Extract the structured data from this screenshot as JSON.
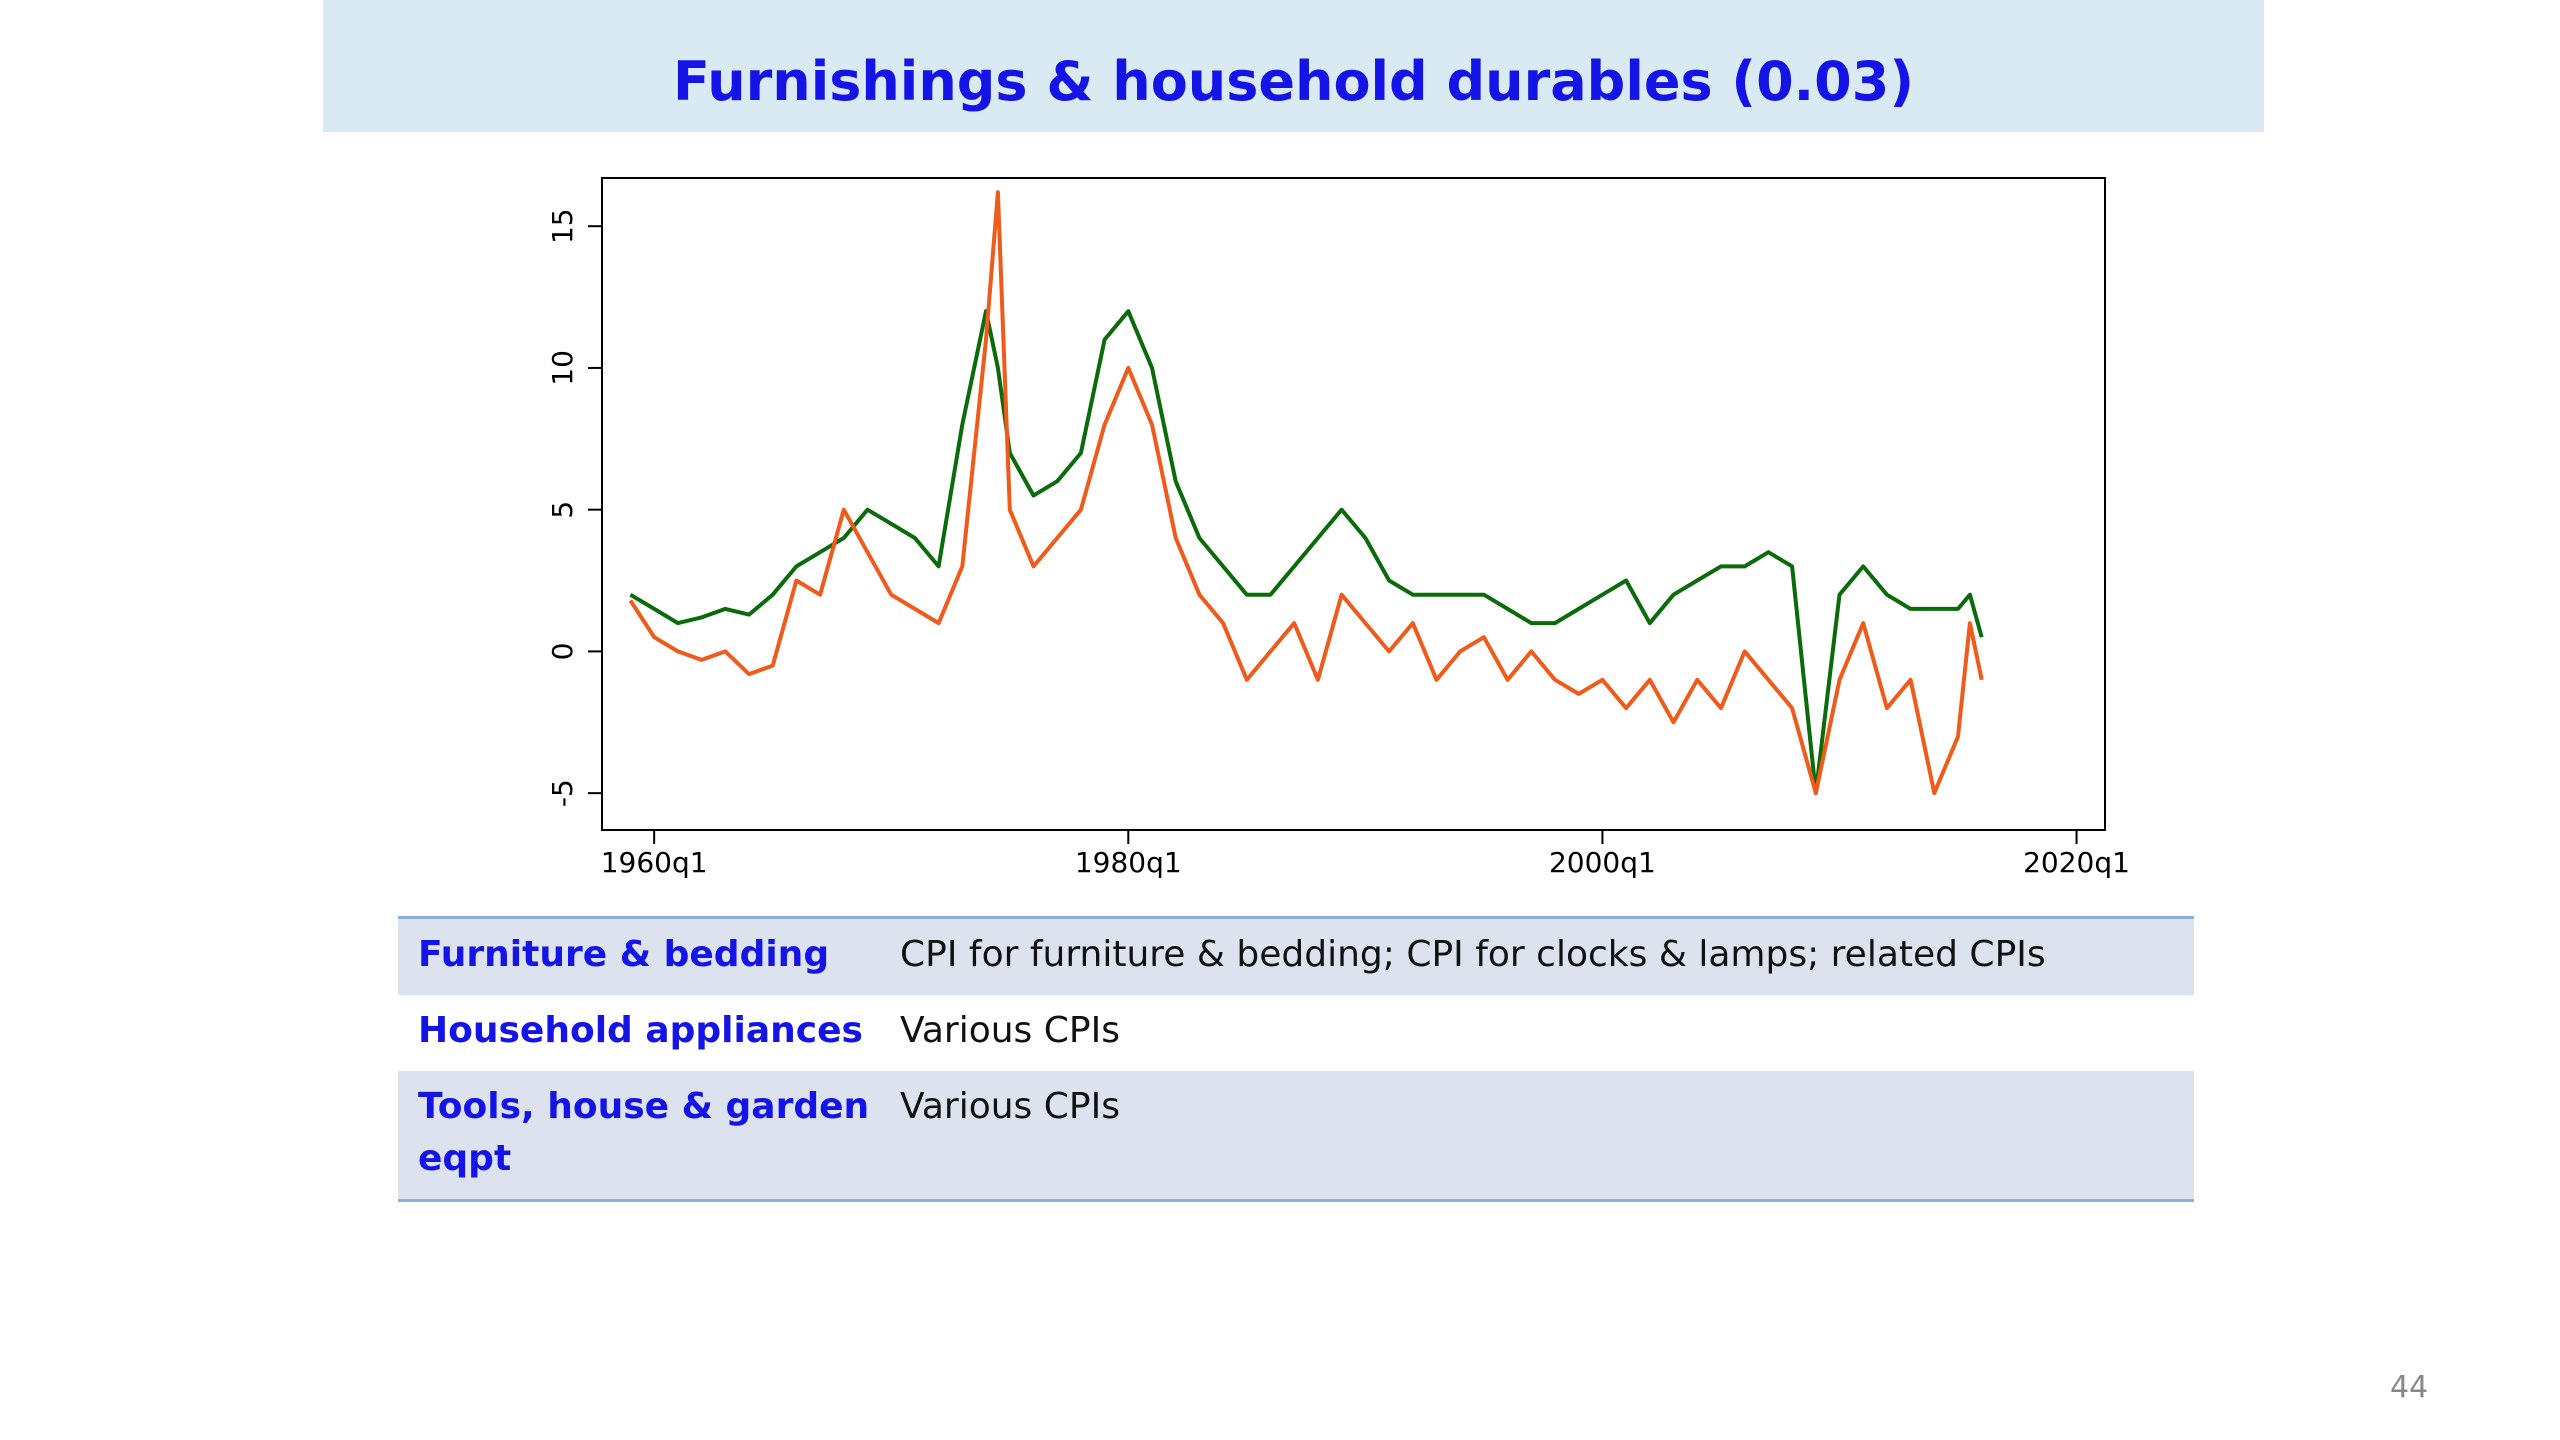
{
  "title": "Furnishings & household durables (0.03)",
  "chart_data": {
    "type": "line",
    "x": [
      1959,
      1960,
      1961,
      1962,
      1963,
      1964,
      1965,
      1966,
      1967,
      1968,
      1969,
      1970,
      1971,
      1972,
      1973,
      1974,
      1974.5,
      1975,
      1976,
      1977,
      1978,
      1979,
      1980,
      1981,
      1982,
      1983,
      1984,
      1985,
      1986,
      1987,
      1988,
      1989,
      1990,
      1991,
      1992,
      1993,
      1994,
      1995,
      1996,
      1997,
      1998,
      1999,
      2000,
      2001,
      2002,
      2003,
      2004,
      2005,
      2006,
      2007,
      2008,
      2009,
      2010,
      2011,
      2012,
      2013,
      2014,
      2015,
      2015.5,
      2016
    ],
    "series": [
      {
        "color": "#0b6b0b",
        "values": [
          2,
          1.5,
          1,
          1.2,
          1.5,
          1.3,
          2,
          3,
          3.5,
          4,
          5,
          4.5,
          4,
          3,
          8,
          12,
          10,
          7,
          5.5,
          6,
          7,
          11,
          12,
          10,
          6,
          4,
          3,
          2,
          2,
          3,
          4,
          5,
          4,
          2.5,
          2,
          2,
          2,
          2,
          1.5,
          1,
          1,
          1.5,
          2,
          2.5,
          1,
          2,
          2.5,
          3,
          3,
          3.5,
          3,
          -5,
          2,
          3,
          2,
          1.5,
          1.5,
          1.5,
          2,
          0.5
        ]
      },
      {
        "color": "#f05a1a",
        "values": [
          1.8,
          0.5,
          0,
          -0.3,
          0,
          -0.8,
          -0.5,
          2.5,
          2,
          5,
          3.5,
          2,
          1.5,
          1,
          3,
          11,
          16.2,
          5,
          3,
          4,
          5,
          8,
          10,
          8,
          4,
          2,
          1,
          -1,
          0,
          1,
          -1,
          2,
          1,
          0,
          1,
          -1,
          0,
          0.5,
          -1,
          0,
          -1,
          -1.5,
          -1,
          -2,
          -1,
          -2.5,
          -1,
          -2,
          0,
          -1,
          -2,
          -5,
          -1,
          1,
          -2,
          -1,
          -5,
          -3,
          1,
          -1
        ]
      }
    ],
    "xlim": [
      1957.8,
      2021.2
    ],
    "xticks": [
      {
        "value": 1960,
        "label": "1960q1"
      },
      {
        "value": 1980,
        "label": "1980q1"
      },
      {
        "value": 2000,
        "label": "2000q1"
      },
      {
        "value": 2020,
        "label": "2020q1"
      }
    ],
    "ylim": [
      -6.3,
      16.7
    ],
    "yticks": [
      -5,
      0,
      5,
      10,
      15
    ]
  },
  "table": {
    "rows": [
      [
        "Furniture & bedding",
        "CPI for furniture & bedding; CPI for clocks & lamps; related CPIs"
      ],
      [
        "Household appliances",
        "Various CPIs"
      ],
      [
        "Tools, house & garden eqpt",
        "Various CPIs"
      ]
    ]
  },
  "page_number": "44"
}
